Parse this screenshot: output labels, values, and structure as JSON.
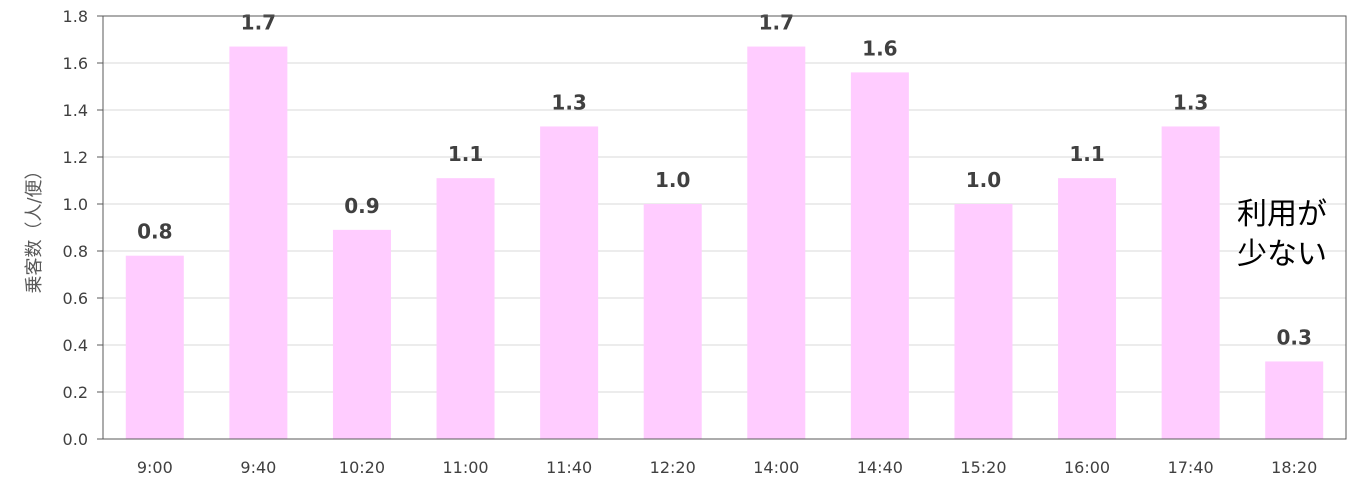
{
  "chart_data": {
    "type": "bar",
    "categories": [
      "9:00",
      "9:40",
      "10:20",
      "11:00",
      "11:40",
      "12:20",
      "14:00",
      "14:40",
      "15:20",
      "16:00",
      "17:40",
      "18:20"
    ],
    "values": [
      0.78,
      1.67,
      0.89,
      1.11,
      1.33,
      1.0,
      1.67,
      1.56,
      1.0,
      1.11,
      1.33,
      0.33
    ],
    "data_labels": [
      "0.8",
      "1.7",
      "0.9",
      "1.1",
      "1.3",
      "1.0",
      "1.7",
      "1.6",
      "1.0",
      "1.1",
      "1.3",
      "0.3"
    ],
    "yticks": [
      "0.0",
      "0.2",
      "0.4",
      "0.6",
      "0.8",
      "1.0",
      "1.2",
      "1.4",
      "1.6",
      "1.8"
    ],
    "ylim": [
      0,
      1.8
    ],
    "ylabel": "乗客数（人/便）",
    "xlabel": "",
    "title": "",
    "grid": true,
    "legend": "none",
    "annotation": [
      "利用が",
      "少ない"
    ],
    "colors": {
      "bar": "#ffccff",
      "grid": "#d9d9d9",
      "axis": "#595959",
      "text": "#404040"
    }
  }
}
